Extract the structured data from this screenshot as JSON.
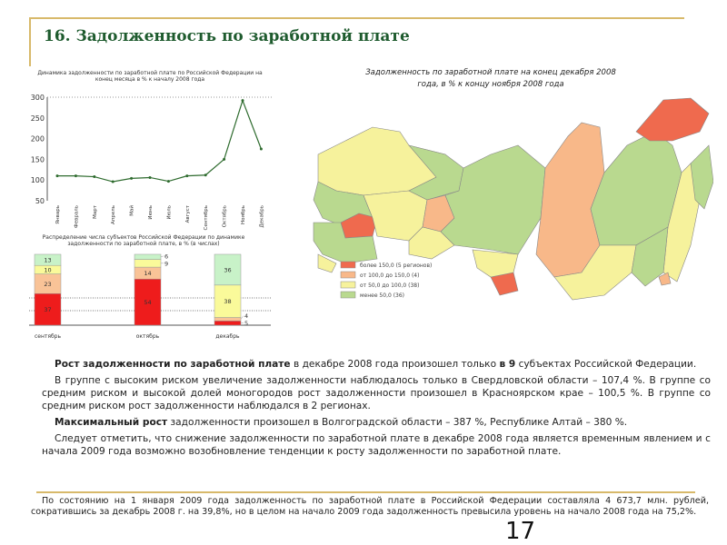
{
  "header": {
    "title": "16. Задолженность по заработной плате"
  },
  "colors": {
    "frame": "#d8b96a",
    "title": "#1e5b2e",
    "red": "#ee1c1c",
    "orange": "#f9c397",
    "yellow": "#fafa9a",
    "green": "#c8f2c8"
  },
  "chart_data": [
    {
      "type": "line",
      "title": "Динамика задолженности по заработной плате по Российской Федерации на конец месяца в % к началу 2008 года",
      "categories": [
        "Январь",
        "Февраль",
        "Март",
        "Апрель",
        "Май",
        "Июнь",
        "Июль",
        "Август",
        "Сентябрь",
        "Октябрь",
        "Ноябрь",
        "Декабрь"
      ],
      "values": [
        110,
        110,
        108,
        96,
        104,
        106,
        97,
        110,
        112,
        150,
        292,
        175
      ],
      "yticks": [
        "50",
        "100",
        "150",
        "200",
        "250",
        "300"
      ],
      "ylim": [
        50,
        300
      ],
      "color": "#2e6b2e"
    },
    {
      "type": "bar",
      "stacked": true,
      "title": "Распределение числа субъектов Российской Федерации по динамике задолженности по заработной плате, в % (в числах)",
      "categories": [
        "сентябрь",
        "октябрь",
        "декабрь"
      ],
      "series": [
        {
          "values": [
            37,
            54,
            5
          ],
          "color": "#ee1c1c"
        },
        {
          "values": [
            23,
            14,
            4
          ],
          "color": "#f9c397"
        },
        {
          "values": [
            10,
            9,
            38
          ],
          "color": "#fafa9a"
        },
        {
          "values": [
            13,
            6,
            36
          ],
          "color": "#c8f2c8"
        }
      ]
    }
  ],
  "map": {
    "title": "Задолженность по заработной плате на конец декабря 2008 года, в % к концу ноября 2008 года",
    "legend": [
      {
        "label": "более 150,0  (5 регионов)",
        "color": "#ef6a4e"
      },
      {
        "label": "от 100,0 до 150,0  (4)",
        "color": "#f8b889"
      },
      {
        "label": "от 50,0 до 100,0  (38)",
        "color": "#f6f29c"
      },
      {
        "label": "менее 50,0  (36)",
        "color": "#b9d98f"
      }
    ]
  },
  "text": {
    "p1_bold": "Рост задолженности по заработной плате",
    "p1a": " в декабре 2008 года произошел только ",
    "p1_bold2": "в 9",
    "p1b": "  субъектах Российской Федерации.",
    "p2": "В группе с высоким риском увеличение задолженности наблюдалось только в Свердловской области – 107,4 %. В группе со средним риском и высокой долей моногородов рост задолженности произошел в Красноярском крае – 100,5 %. В группе со средним риском рост задолженности наблюдался в 2 регионах.",
    "p3_bold": "Максимальный рост",
    "p3": " задолженности произошел в  Волгоградской области – 387 %, Республике Алтай – 380 %.",
    "p4": "Следует отметить, что снижение задолженности по заработной плате в декабре 2008 года является временным явлением и с начала 2009 года возможно возобновление тенденции к росту задолженности по заработной плате."
  },
  "footnote": "По состоянию на 1 января 2009 года задолженность по заработной плате в Российской Федерации составляла 4 673,7 млн. рублей, сократившись за декабрь 2008 г. на 39,8%, но в целом на начало 2009 года задолженность превысила уровень на начало 2008 года на 75,2%.",
  "page_number": "17"
}
